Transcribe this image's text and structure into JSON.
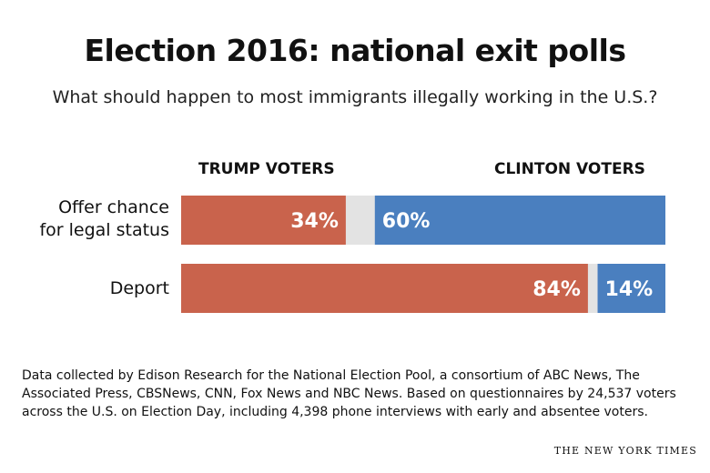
{
  "header": {
    "title": "Election 2016: national exit polls",
    "subtitle": "What should happen to most immigrants illegally working in the U.S.?"
  },
  "columns": {
    "left": "TRUMP VOTERS",
    "right": "CLINTON VOTERS"
  },
  "rows": [
    {
      "label_line1": "Offer chance",
      "label_line2": "for legal status"
    },
    {
      "label_line1": "Deport",
      "label_line2": ""
    }
  ],
  "footer": {
    "source": "Data collected by Edison Research for the National Election Pool, a consortium of ABC News, The Associated Press, CBSNews, CNN, Fox News and NBC News. Based on questionnaires by 24,537 voters across the U.S. on Election Day, including 4,398 phone interviews with early and absentee voters.",
    "credit": "THE NEW YORK TIMES"
  },
  "chart_data": {
    "type": "bar",
    "orientation": "horizontal-stacked",
    "title": "Election 2016: national exit polls",
    "subtitle": "What should happen to most immigrants illegally working in the U.S.?",
    "categories": [
      "Offer chance for legal status",
      "Deport"
    ],
    "series": [
      {
        "name": "TRUMP VOTERS",
        "values": [
          34,
          84
        ],
        "labels": [
          "34%",
          "84%"
        ],
        "color": "#c9634c"
      },
      {
        "name": "CLINTON VOTERS",
        "values": [
          60,
          14
        ],
        "labels": [
          "60%",
          "14%"
        ],
        "color": "#4a7fbf"
      }
    ],
    "remainder_color": "#e3e3e3",
    "xlim": [
      0,
      100
    ],
    "grid": false,
    "legend": "top"
  }
}
